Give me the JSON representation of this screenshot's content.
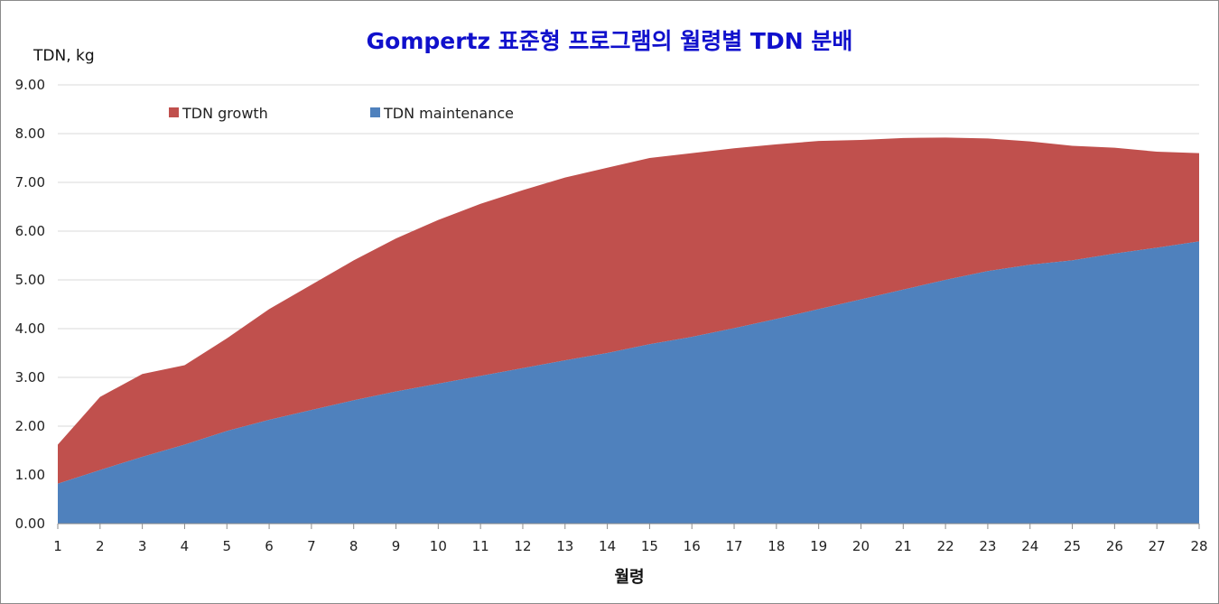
{
  "chart_data": {
    "type": "area",
    "stacked": true,
    "title": "Gompertz 표준형 프로그램의 월령별 TDN 분배",
    "ylabel": "TDN, kg",
    "xlabel": "월령",
    "ylim": [
      0,
      9
    ],
    "yticks": [
      "0.00",
      "1.00",
      "2.00",
      "3.00",
      "4.00",
      "5.00",
      "6.00",
      "7.00",
      "8.00",
      "9.00"
    ],
    "x": [
      1,
      2,
      3,
      4,
      5,
      6,
      7,
      8,
      9,
      10,
      11,
      12,
      13,
      14,
      15,
      16,
      17,
      18,
      19,
      20,
      21,
      22,
      23,
      24,
      25,
      26,
      27,
      28
    ],
    "grid": true,
    "legend_position": "top-left",
    "series": [
      {
        "name": "TDN growth",
        "color": "#c0504d",
        "values": [
          0.8,
          1.5,
          1.7,
          1.63,
          1.9,
          2.27,
          2.57,
          2.87,
          3.14,
          3.36,
          3.53,
          3.65,
          3.75,
          3.8,
          3.82,
          3.77,
          3.69,
          3.58,
          3.45,
          3.27,
          3.11,
          2.92,
          2.72,
          2.53,
          2.35,
          2.17,
          1.97,
          1.81
        ]
      },
      {
        "name": "TDN maintenance",
        "color": "#4f81bd",
        "values": [
          0.82,
          1.1,
          1.37,
          1.62,
          1.9,
          2.13,
          2.33,
          2.53,
          2.71,
          2.87,
          3.03,
          3.19,
          3.35,
          3.5,
          3.68,
          3.83,
          4.01,
          4.2,
          4.4,
          4.6,
          4.8,
          5.0,
          5.18,
          5.31,
          5.4,
          5.54,
          5.66,
          5.79
        ]
      }
    ]
  }
}
